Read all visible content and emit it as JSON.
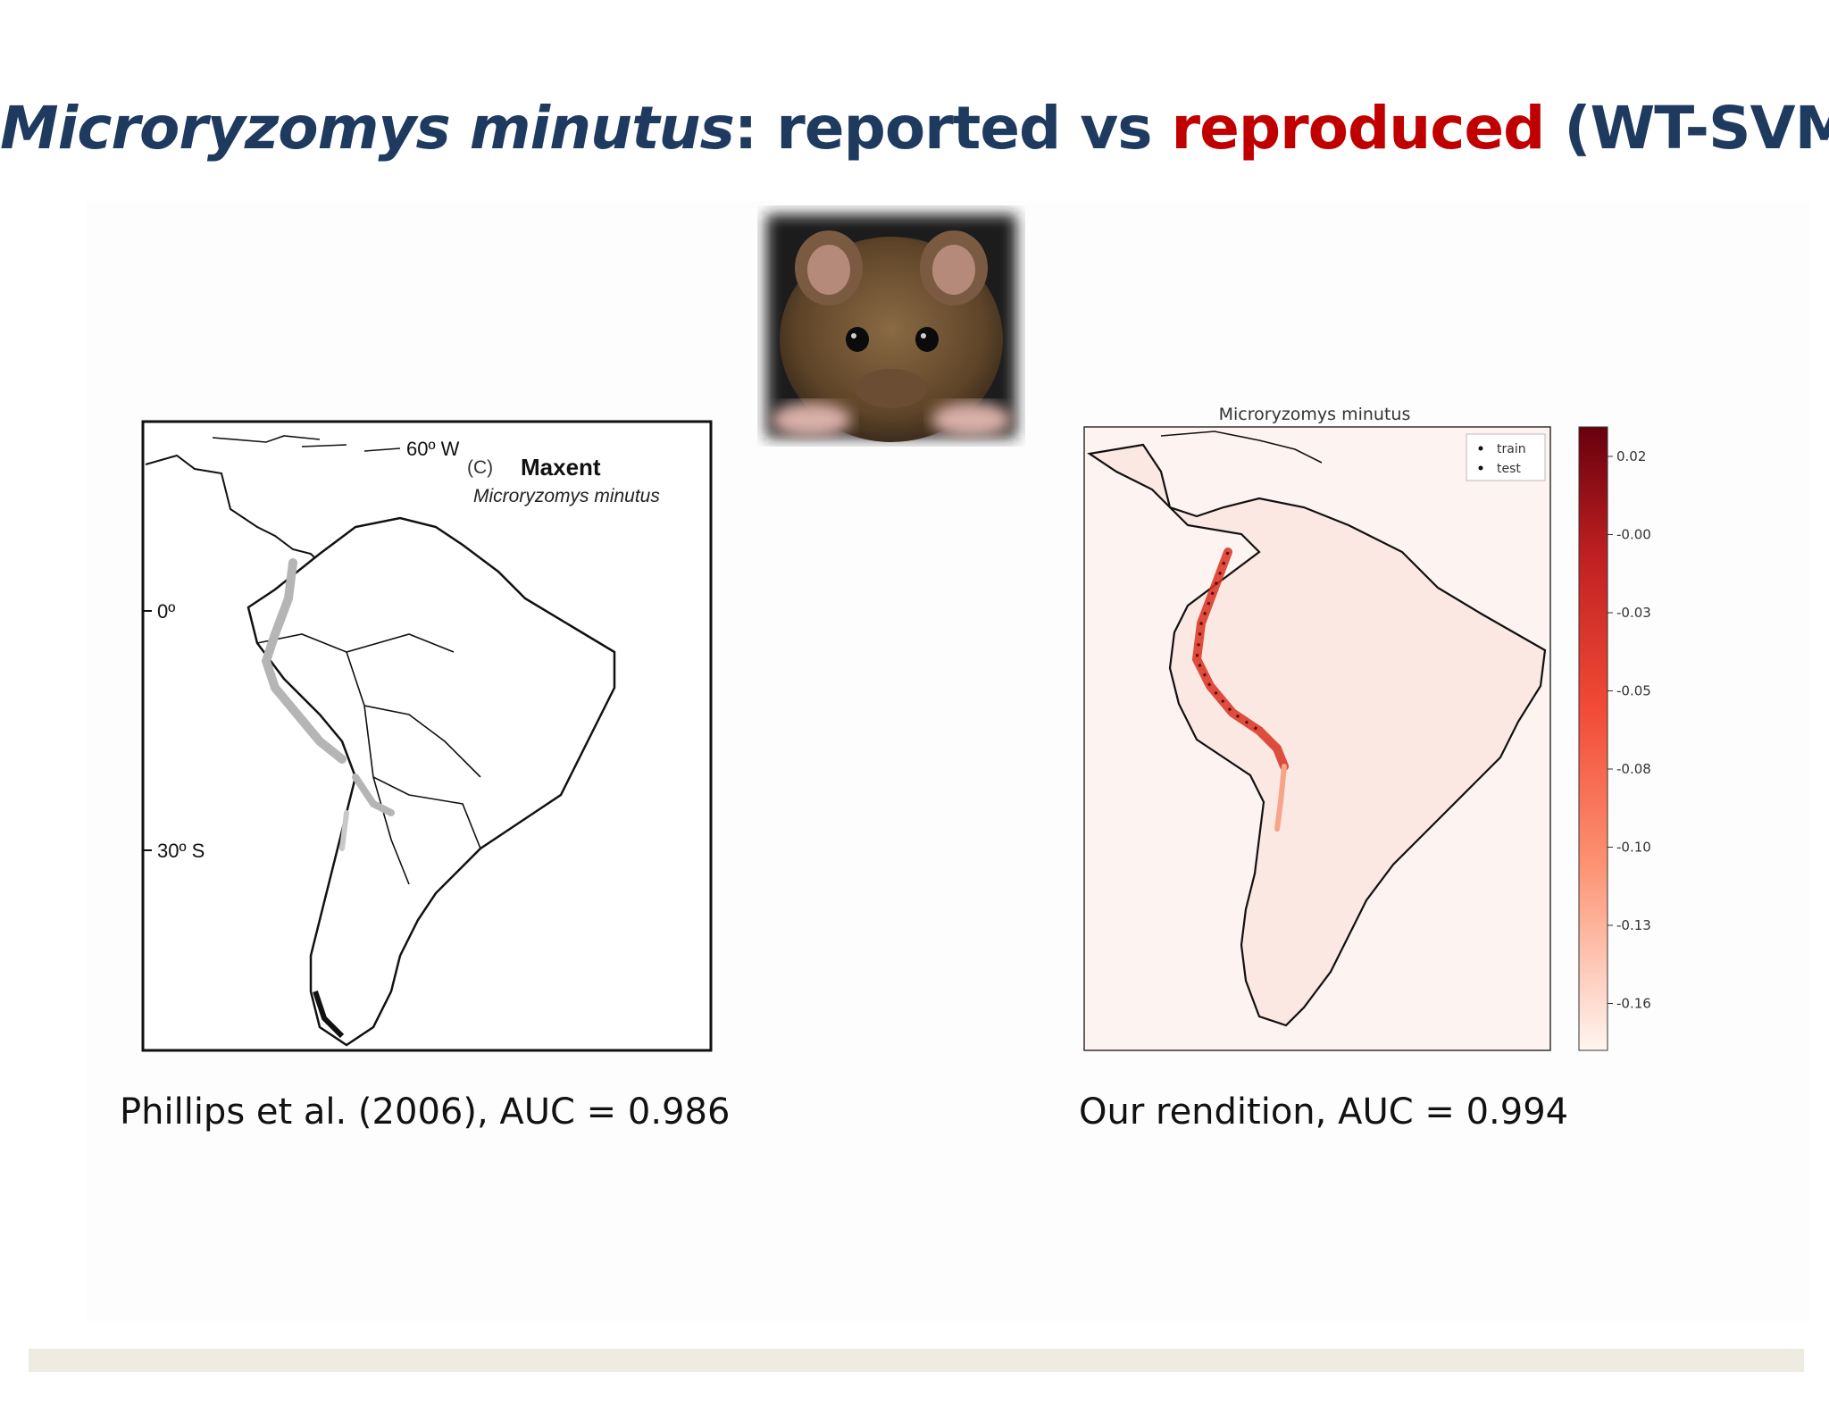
{
  "title": {
    "species": "Microryzomys minutus",
    "sep": ": reported vs ",
    "red": "reproduced",
    "tail": " (WT-SVM)"
  },
  "left_map": {
    "label_lon": "60º W",
    "label_panel": "(C)",
    "label_method": "Maxent",
    "label_species": "Microryzomys minutus",
    "lat_0": "0º",
    "lat_30": "30º S",
    "caption": "Phillips et al. (2006), AUC = 0.986"
  },
  "right_map": {
    "title": "Microryzomys minutus",
    "legend": [
      "train",
      "test"
    ],
    "colorbar_ticks": [
      "0.02",
      "-0.00",
      "-0.03",
      "-0.05",
      "-0.08",
      "-0.10",
      "-0.13",
      "-0.16"
    ],
    "caption": "Our rendition, AUC = 0.994"
  },
  "colors": {
    "title_blue": "#1f3a5f",
    "title_red": "#c00000"
  }
}
